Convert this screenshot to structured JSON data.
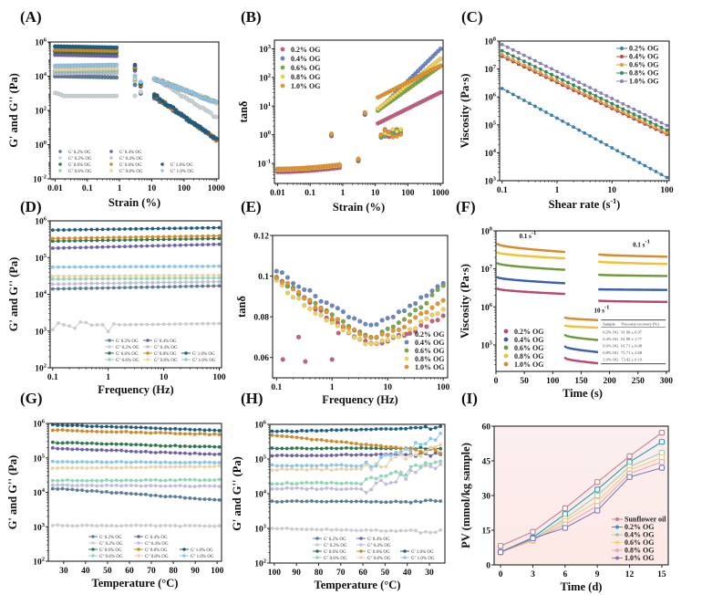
{
  "figure": {
    "panels": [
      "(A)",
      "(B)",
      "(C)",
      "(D)",
      "(E)",
      "(F)",
      "(G)",
      "(H)",
      "(I)"
    ]
  },
  "chart_data": [
    {
      "id": "A",
      "label": "(A)",
      "type": "scatter",
      "xscale": "log",
      "yscale": "log",
      "xlabel": "Strain (%)",
      "ylabel": "G' and G'' (Pa)",
      "xlim": [
        0.007,
        1200
      ],
      "ylim": [
        0.01,
        1000000
      ],
      "xticks": [
        0.01,
        0.1,
        1,
        10,
        100,
        1000
      ],
      "xtick_labels": [
        "0.01",
        "0.1",
        "1",
        "10",
        "100",
        "1000"
      ],
      "yticks": [
        0.01,
        1,
        100,
        10000,
        1000000
      ],
      "ytick_labels": [
        "10^-2",
        "10^0",
        "10^2",
        "10^4",
        "10^6"
      ],
      "legend": {
        "placement": "bottom-left",
        "columns": 3
      },
      "series": [
        {
          "name": "G' 0.2% OG",
          "color": "#5b7f99",
          "plateau": 10000,
          "lvr_end": 0.8
        },
        {
          "name": "G'' 0.2% OG",
          "color": "#c9d3d6",
          "plateau": 700,
          "lvr_end": 0.8
        },
        {
          "name": "G' 0.4% OG",
          "color": "#6f62a8",
          "plateau": 180000,
          "lvr_end": 0.8
        },
        {
          "name": "G'' 0.4% OG",
          "color": "#c4bcdc",
          "plateau": 14000,
          "lvr_end": 0.8
        },
        {
          "name": "G' 0.6% OG",
          "color": "#2f7a4f",
          "plateau": 280000,
          "lvr_end": 0.8
        },
        {
          "name": "G'' 0.6% OG",
          "color": "#8fd7b4",
          "plateau": 20000,
          "lvr_end": 0.8
        },
        {
          "name": "G' 0.8% OG",
          "color": "#d08a2c",
          "plateau": 350000,
          "lvr_end": 0.8
        },
        {
          "name": "G'' 0.8% OG",
          "color": "#ead3a9",
          "plateau": 24000,
          "lvr_end": 0.8
        },
        {
          "name": "G' 1.0% OG",
          "color": "#1d5f86",
          "plateau": 550000,
          "lvr_end": 0.8
        },
        {
          "name": "G'' 1.0% OG",
          "color": "#8cc7ea",
          "plateau": 40000,
          "lvr_end": 0.8
        }
      ],
      "post_yield": {
        "strain_range": [
          12,
          1000
        ],
        "Gp_at_12": 600,
        "Gp_at_1000": 2,
        "Gpp_at_12": 8000,
        "Gpp_at_1000": 300
      }
    },
    {
      "id": "B",
      "label": "(B)",
      "type": "scatter",
      "xscale": "log",
      "yscale": "log",
      "xlabel": "Strain (%)",
      "ylabel": "tanδ",
      "xlim": [
        0.008,
        1200
      ],
      "ylim": [
        0.02,
        2000
      ],
      "xticks": [
        0.01,
        0.1,
        1,
        10,
        100,
        1000
      ],
      "xtick_labels": [
        "0.01",
        "0.1",
        "1",
        "10",
        "100",
        "1000"
      ],
      "yticks": [
        0.1,
        1,
        10,
        100,
        1000
      ],
      "ytick_labels": [
        "10^-1",
        "10^0",
        "10^1",
        "10^2",
        "10^3"
      ],
      "legend": {
        "placement": "top-left"
      },
      "series": [
        {
          "name": "0.2% OG",
          "color": "#c2607f",
          "low": 0.05,
          "high_start": 2.5,
          "high_end": 30
        },
        {
          "name": "0.4% OG",
          "color": "#6a86c4",
          "low": 0.06,
          "high_start": 7,
          "high_end": 1000
        },
        {
          "name": "0.6% OG",
          "color": "#7aa84a",
          "low": 0.06,
          "high_start": 7,
          "high_end": 250
        },
        {
          "name": "0.8% OG",
          "color": "#f0cf5a",
          "low": 0.06,
          "high_start": 8,
          "high_end": 450
        },
        {
          "name": "1.0% OG",
          "color": "#e3962f",
          "low": 0.065,
          "high_start": 20,
          "high_end": 260
        }
      ]
    },
    {
      "id": "C",
      "label": "(C)",
      "type": "line",
      "xscale": "log",
      "yscale": "log",
      "xlabel": "Shear rate (s^-1)",
      "ylabel": "Viscosity (Pa·s)",
      "xlim": [
        0.09,
        110
      ],
      "ylim": [
        1000,
        100000000
      ],
      "xticks": [
        0.1,
        1,
        10,
        100
      ],
      "xtick_labels": [
        "0.1",
        "1",
        "10",
        "100"
      ],
      "yticks": [
        1000,
        10000,
        100000,
        1000000,
        10000000,
        100000000
      ],
      "ytick_labels": [
        "10^3",
        "10^4",
        "10^5",
        "10^6",
        "10^7",
        "10^8"
      ],
      "legend": {
        "placement": "top-right"
      },
      "series": [
        {
          "name": "0.2% OG",
          "color": "#3a7fb0",
          "start": 2000000,
          "end": 1300
        },
        {
          "name": "0.4% OG",
          "color": "#b84a3d",
          "start": 28000000,
          "end": 45000
        },
        {
          "name": "0.6% OG",
          "color": "#e29a3e",
          "start": 33000000,
          "end": 52000
        },
        {
          "name": "0.8% OG",
          "color": "#2f8a62",
          "start": 45000000,
          "end": 65000
        },
        {
          "name": "1.0% OG",
          "color": "#8c7fb8",
          "start": 75000000,
          "end": 95000
        }
      ]
    },
    {
      "id": "D",
      "label": "(D)",
      "type": "line",
      "xscale": "log",
      "yscale": "log",
      "xlabel": "Frequency (Hz)",
      "ylabel": "G' and G'' (Pa)",
      "xlim": [
        0.09,
        110
      ],
      "ylim": [
        100,
        1000000
      ],
      "xticks": [
        0.1,
        1,
        10,
        100
      ],
      "xtick_labels": [
        "0.1",
        "1",
        "10",
        "100"
      ],
      "yticks": [
        100,
        1000,
        10000,
        100000,
        1000000
      ],
      "ytick_labels": [
        "10^2",
        "10^3",
        "10^4",
        "10^5",
        "10^6"
      ],
      "legend": {
        "placement": "bottom-right",
        "columns": 3
      },
      "series": [
        {
          "name": "G' 0.2% OG",
          "color": "#5b7f99",
          "start": 14000,
          "end": 17000
        },
        {
          "name": "G'' 0.2% OG",
          "color": "#c9cdd0",
          "start": 1400,
          "end": 1600,
          "noisy": true
        },
        {
          "name": "G' 0.4% OG",
          "color": "#6f62a8",
          "start": 180000,
          "end": 230000
        },
        {
          "name": "G'' 0.4% OG",
          "color": "#c4bcdc",
          "start": 19000,
          "end": 22000
        },
        {
          "name": "G' 0.6% OG",
          "color": "#2f7a4f",
          "start": 280000,
          "end": 330000
        },
        {
          "name": "G'' 0.6% OG",
          "color": "#8fd7b4",
          "start": 26000,
          "end": 28000
        },
        {
          "name": "G' 0.8% OG",
          "color": "#d08a2c",
          "start": 330000,
          "end": 390000
        },
        {
          "name": "G'' 0.8% OG",
          "color": "#ead3a9",
          "start": 31000,
          "end": 33000
        },
        {
          "name": "G' 1.0% OG",
          "color": "#1d5f86",
          "start": 560000,
          "end": 650000
        },
        {
          "name": "G'' 1.0% OG",
          "color": "#8cc7ea",
          "start": 55000,
          "end": 58000
        }
      ]
    },
    {
      "id": "E",
      "label": "(E)",
      "type": "scatter",
      "xscale": "log",
      "yscale": "linear",
      "xlabel": "Frequency (Hz)",
      "ylabel": "tanδ",
      "xlim": [
        0.085,
        120
      ],
      "ylim": [
        0.05,
        0.12
      ],
      "xticks": [
        0.1,
        1,
        10,
        100
      ],
      "xtick_labels": [
        "0.1",
        "1",
        "10",
        "100"
      ],
      "yticks": [
        0.06,
        0.08,
        0.1,
        0.12
      ],
      "ytick_labels": [
        "0.06",
        "0.08",
        "0.1",
        "0.12"
      ],
      "legend": {
        "placement": "bottom-right"
      },
      "series": [
        {
          "name": "0.2% OG",
          "color": "#c2607f",
          "start": 0.1,
          "min": 0.067,
          "end": 0.08
        },
        {
          "name": "0.4% OG",
          "color": "#6a86c4",
          "start": 0.103,
          "min": 0.076,
          "end": 0.097
        },
        {
          "name": "0.6% OG",
          "color": "#7aa84a",
          "start": 0.1,
          "min": 0.07,
          "end": 0.095
        },
        {
          "name": "0.8% OG",
          "color": "#f0cf5a",
          "start": 0.097,
          "min": 0.066,
          "end": 0.084
        },
        {
          "name": "1.0% OG",
          "color": "#e3962f",
          "start": 0.1,
          "min": 0.069,
          "end": 0.089
        }
      ]
    },
    {
      "id": "F",
      "label": "(F)",
      "type": "scatter",
      "xscale": "linear",
      "yscale": "log",
      "xlabel": "Time (s)",
      "ylabel": "Viscosity (Pa·s)",
      "xlim": [
        0,
        305
      ],
      "ylim": [
        20000,
        100000000
      ],
      "xticks": [
        0,
        50,
        100,
        150,
        200,
        250,
        300
      ],
      "xtick_labels": [
        "0",
        "50",
        "100",
        "150",
        "200",
        "250",
        "300"
      ],
      "yticks": [
        100000,
        1000000,
        10000000,
        100000000
      ],
      "ytick_labels": [
        "10^5",
        "10^6",
        "10^7",
        "10^8"
      ],
      "annotations": [
        "0.1 s^-1",
        "10 s^-1",
        "0.1 s^-1"
      ],
      "legend": {
        "placement": "bottom-left"
      },
      "series": [
        {
          "name": "0.2% OG",
          "color": "#b84a6d",
          "stage1": [
            3000000,
            2200000
          ],
          "stage2": [
            45000,
            33000
          ],
          "stage3": [
            1450000,
            1350000
          ]
        },
        {
          "name": "0.4% OG",
          "color": "#3d5fae",
          "stage1": [
            6000000,
            4200000
          ],
          "stage2": [
            90000,
            65000
          ],
          "stage3": [
            2900000,
            2800000
          ]
        },
        {
          "name": "0.6% OG",
          "color": "#6e9a3a",
          "stage1": [
            14000000,
            9500000
          ],
          "stage2": [
            180000,
            135000
          ],
          "stage3": [
            7000000,
            6500000
          ]
        },
        {
          "name": "0.8% OG",
          "color": "#f2c230",
          "stage1": [
            27000000,
            19000000
          ],
          "stage2": [
            320000,
            285000
          ],
          "stage3": [
            15500000,
            13500000
          ]
        },
        {
          "name": "1.0% OG",
          "color": "#d98a2a",
          "stage1": [
            45000000,
            28000000
          ],
          "stage2": [
            520000,
            450000
          ],
          "stage3": [
            24000000,
            21000000
          ]
        }
      ],
      "table": {
        "headers": [
          "Sample",
          "Viscosity recovery (%)"
        ],
        "rows": [
          [
            "0.2% OG",
            "91.90 ± 0.97"
          ],
          [
            "0.4% OG",
            "61.98 ± 1.77"
          ],
          [
            "0.6% OG",
            "61.71 ± 6.08"
          ],
          [
            "0.8% OG",
            "71.71 ± 2.68"
          ],
          [
            "1.0% OG",
            "73.42 ± 0.19"
          ]
        ]
      }
    },
    {
      "id": "G",
      "label": "(G)",
      "type": "line",
      "xscale": "linear",
      "yscale": "log",
      "xlabel": "Temperature (°C)",
      "ylabel": "G' and G'' (Pa)",
      "xlim": [
        23,
        102
      ],
      "ylim": [
        100,
        1000000
      ],
      "xticks": [
        30,
        40,
        50,
        60,
        70,
        80,
        90,
        100
      ],
      "xtick_labels": [
        "30",
        "40",
        "50",
        "60",
        "70",
        "80",
        "90",
        "100"
      ],
      "yticks": [
        100,
        1000,
        10000,
        100000,
        1000000
      ],
      "ytick_labels": [
        "10^2",
        "10^3",
        "10^4",
        "10^5",
        "10^6"
      ],
      "legend": {
        "placement": "bottom-right",
        "columns": 3
      },
      "series": [
        {
          "name": "G' 0.2% OG",
          "color": "#5b7f99",
          "start": 13000,
          "end": 6000
        },
        {
          "name": "G'' 0.2% OG",
          "color": "#c9cdd0",
          "start": 1100,
          "end": 1050
        },
        {
          "name": "G' 0.4% OG",
          "color": "#6f62a8",
          "start": 190000,
          "end": 125000
        },
        {
          "name": "G'' 0.4% OG",
          "color": "#c4bcdc",
          "start": 16000,
          "end": 15000
        },
        {
          "name": "G' 0.6% OG",
          "color": "#2f7a4f",
          "start": 280000,
          "end": 205000
        },
        {
          "name": "G'' 0.6% OG",
          "color": "#8fd7b4",
          "start": 22000,
          "end": 23000
        },
        {
          "name": "G' 0.8% OG",
          "color": "#d08a2c",
          "start": 640000,
          "end": 480000
        },
        {
          "name": "G'' 0.8% OG",
          "color": "#ead3a9",
          "start": 50000,
          "end": 57000
        },
        {
          "name": "G' 1.0% OG",
          "color": "#1d5f86",
          "start": 920000,
          "end": 620000
        },
        {
          "name": "G'' 1.0% OG",
          "color": "#8cc7ea",
          "start": 77000,
          "end": 73000
        }
      ]
    },
    {
      "id": "H",
      "label": "(H)",
      "type": "line",
      "xscale": "linear-reversed",
      "yscale": "log",
      "xlabel": "Temperature (°C)",
      "ylabel": "G' and G'' (Pa)",
      "xlim": [
        102,
        23
      ],
      "ylim": [
        100,
        1000000
      ],
      "xticks": [
        100,
        90,
        80,
        70,
        60,
        50,
        40,
        30
      ],
      "xtick_labels": [
        "100",
        "90",
        "80",
        "70",
        "60",
        "50",
        "40",
        "30"
      ],
      "yticks": [
        100,
        1000,
        10000,
        100000,
        1000000
      ],
      "ytick_labels": [
        "10^2",
        "10^3",
        "10^4",
        "10^5",
        "10^6"
      ],
      "legend": {
        "placement": "bottom-right",
        "columns": 3
      },
      "series": [
        {
          "name": "G' 0.2% OG",
          "color": "#5b7f99",
          "start": 6000,
          "end": 5800
        },
        {
          "name": "G'' 0.2% OG",
          "color": "#c9cdd0",
          "start": 1000,
          "end": 800
        },
        {
          "name": "G' 0.4% OG",
          "color": "#6f62a8",
          "start": 125000,
          "end": 140000
        },
        {
          "name": "G'' 0.4% OG",
          "color": "#c4bcdc",
          "start": 14000,
          "end": 75000
        },
        {
          "name": "G' 0.6% OG",
          "color": "#2f7a4f",
          "start": 205000,
          "end": 200000
        },
        {
          "name": "G'' 0.6% OG",
          "color": "#8fd7b4",
          "start": 20000,
          "end": 80000
        },
        {
          "name": "G' 0.8% OG",
          "color": "#d08a2c",
          "start": 480000,
          "end": 160000
        },
        {
          "name": "G'' 0.8% OG",
          "color": "#ead3a9",
          "start": 50000,
          "end": 260000
        },
        {
          "name": "G' 1.0% OG",
          "color": "#1d5f86",
          "start": 620000,
          "end": 780000
        },
        {
          "name": "G'' 1.0% OG",
          "color": "#8cc7ea",
          "start": 65000,
          "end": 430000
        }
      ]
    },
    {
      "id": "I",
      "label": "(I)",
      "type": "line",
      "xscale": "linear",
      "yscale": "linear",
      "xlabel": "Time (d)",
      "ylabel": "PV (mmol/kg sample)",
      "xlim": [
        -0.6,
        15.6
      ],
      "ylim": [
        0,
        60
      ],
      "xticks": [
        0,
        3,
        6,
        9,
        12,
        15
      ],
      "xtick_labels": [
        "0",
        "3",
        "6",
        "9",
        "12",
        "15"
      ],
      "yticks": [
        0,
        15,
        30,
        45,
        60
      ],
      "ytick_labels": [
        "0",
        "15",
        "30",
        "45",
        "60"
      ],
      "background": [
        "#fbeff0",
        "#fde9e6"
      ],
      "legend": {
        "placement": "bottom-right"
      },
      "x": [
        0,
        3,
        6,
        9,
        12,
        15
      ],
      "series": [
        {
          "name": "Sunflower oil",
          "color": "#c77f92",
          "values": [
            8.2,
            14.3,
            24.5,
            35.8,
            47.0,
            57.2
          ]
        },
        {
          "name": "0.2% OG",
          "color": "#2e9bb0",
          "values": [
            5.6,
            11.8,
            22.0,
            32.6,
            44.5,
            53.2
          ]
        },
        {
          "name": "0.4% OG",
          "color": "#9fcfb3",
          "values": [
            5.5,
            11.0,
            20.0,
            30.0,
            42.5,
            48.5
          ]
        },
        {
          "name": "0.6% OG",
          "color": "#f3cf7a",
          "values": [
            5.5,
            10.4,
            19.0,
            27.5,
            41.0,
            46.5
          ]
        },
        {
          "name": "0.8% OG",
          "color": "#e8a8b8",
          "values": [
            5.5,
            10.8,
            17.5,
            25.5,
            39.5,
            44.5
          ]
        },
        {
          "name": "1.0% OG",
          "color": "#7a7bb8",
          "values": [
            5.5,
            11.5,
            16.0,
            23.5,
            38.0,
            42.0
          ]
        }
      ]
    }
  ]
}
